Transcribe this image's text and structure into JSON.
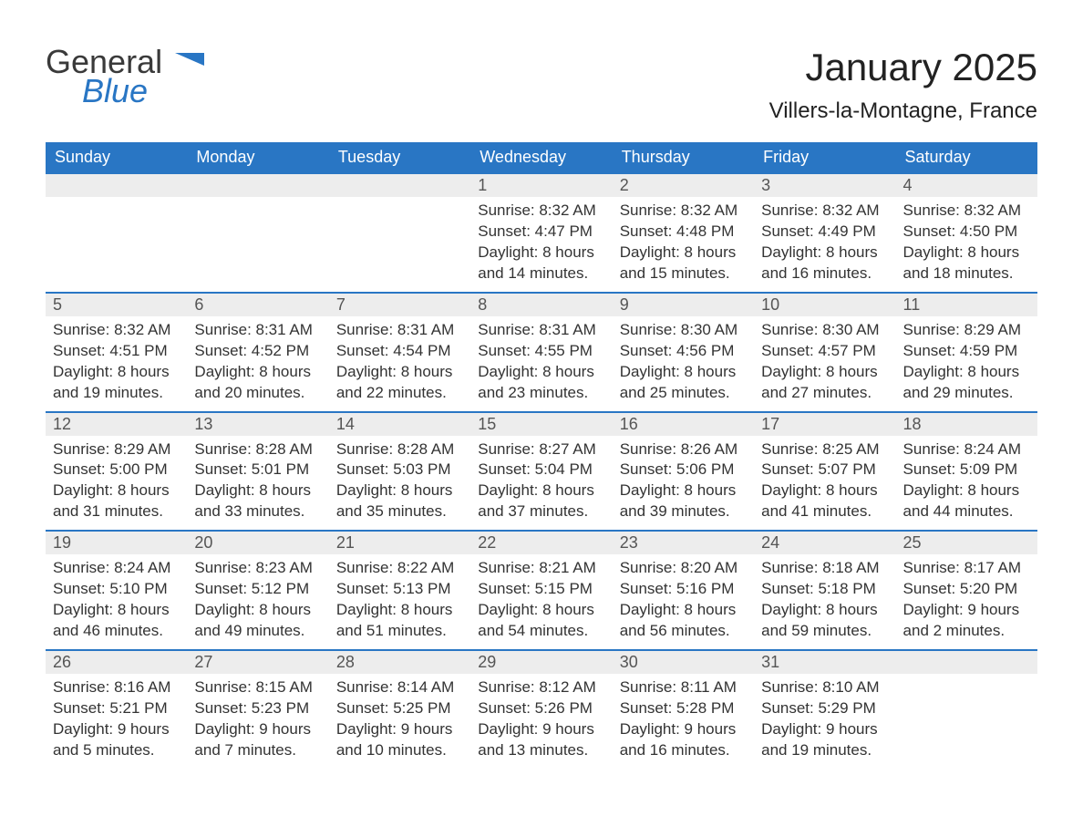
{
  "logo": {
    "general": "General",
    "blue": "Blue",
    "accent_color": "#2976c4"
  },
  "title": "January 2025",
  "location": "Villers-la-Montagne, France",
  "colors": {
    "header_bg": "#2976c4",
    "header_text": "#ffffff",
    "daynum_bg": "#ededed",
    "border": "#2976c4",
    "text": "#333333",
    "background": "#ffffff"
  },
  "day_headers": [
    "Sunday",
    "Monday",
    "Tuesday",
    "Wednesday",
    "Thursday",
    "Friday",
    "Saturday"
  ],
  "weeks": [
    [
      {
        "n": "",
        "sunrise": "",
        "sunset": "",
        "daylight": ""
      },
      {
        "n": "",
        "sunrise": "",
        "sunset": "",
        "daylight": ""
      },
      {
        "n": "",
        "sunrise": "",
        "sunset": "",
        "daylight": ""
      },
      {
        "n": "1",
        "sunrise": "Sunrise: 8:32 AM",
        "sunset": "Sunset: 4:47 PM",
        "daylight": "Daylight: 8 hours and 14 minutes."
      },
      {
        "n": "2",
        "sunrise": "Sunrise: 8:32 AM",
        "sunset": "Sunset: 4:48 PM",
        "daylight": "Daylight: 8 hours and 15 minutes."
      },
      {
        "n": "3",
        "sunrise": "Sunrise: 8:32 AM",
        "sunset": "Sunset: 4:49 PM",
        "daylight": "Daylight: 8 hours and 16 minutes."
      },
      {
        "n": "4",
        "sunrise": "Sunrise: 8:32 AM",
        "sunset": "Sunset: 4:50 PM",
        "daylight": "Daylight: 8 hours and 18 minutes."
      }
    ],
    [
      {
        "n": "5",
        "sunrise": "Sunrise: 8:32 AM",
        "sunset": "Sunset: 4:51 PM",
        "daylight": "Daylight: 8 hours and 19 minutes."
      },
      {
        "n": "6",
        "sunrise": "Sunrise: 8:31 AM",
        "sunset": "Sunset: 4:52 PM",
        "daylight": "Daylight: 8 hours and 20 minutes."
      },
      {
        "n": "7",
        "sunrise": "Sunrise: 8:31 AM",
        "sunset": "Sunset: 4:54 PM",
        "daylight": "Daylight: 8 hours and 22 minutes."
      },
      {
        "n": "8",
        "sunrise": "Sunrise: 8:31 AM",
        "sunset": "Sunset: 4:55 PM",
        "daylight": "Daylight: 8 hours and 23 minutes."
      },
      {
        "n": "9",
        "sunrise": "Sunrise: 8:30 AM",
        "sunset": "Sunset: 4:56 PM",
        "daylight": "Daylight: 8 hours and 25 minutes."
      },
      {
        "n": "10",
        "sunrise": "Sunrise: 8:30 AM",
        "sunset": "Sunset: 4:57 PM",
        "daylight": "Daylight: 8 hours and 27 minutes."
      },
      {
        "n": "11",
        "sunrise": "Sunrise: 8:29 AM",
        "sunset": "Sunset: 4:59 PM",
        "daylight": "Daylight: 8 hours and 29 minutes."
      }
    ],
    [
      {
        "n": "12",
        "sunrise": "Sunrise: 8:29 AM",
        "sunset": "Sunset: 5:00 PM",
        "daylight": "Daylight: 8 hours and 31 minutes."
      },
      {
        "n": "13",
        "sunrise": "Sunrise: 8:28 AM",
        "sunset": "Sunset: 5:01 PM",
        "daylight": "Daylight: 8 hours and 33 minutes."
      },
      {
        "n": "14",
        "sunrise": "Sunrise: 8:28 AM",
        "sunset": "Sunset: 5:03 PM",
        "daylight": "Daylight: 8 hours and 35 minutes."
      },
      {
        "n": "15",
        "sunrise": "Sunrise: 8:27 AM",
        "sunset": "Sunset: 5:04 PM",
        "daylight": "Daylight: 8 hours and 37 minutes."
      },
      {
        "n": "16",
        "sunrise": "Sunrise: 8:26 AM",
        "sunset": "Sunset: 5:06 PM",
        "daylight": "Daylight: 8 hours and 39 minutes."
      },
      {
        "n": "17",
        "sunrise": "Sunrise: 8:25 AM",
        "sunset": "Sunset: 5:07 PM",
        "daylight": "Daylight: 8 hours and 41 minutes."
      },
      {
        "n": "18",
        "sunrise": "Sunrise: 8:24 AM",
        "sunset": "Sunset: 5:09 PM",
        "daylight": "Daylight: 8 hours and 44 minutes."
      }
    ],
    [
      {
        "n": "19",
        "sunrise": "Sunrise: 8:24 AM",
        "sunset": "Sunset: 5:10 PM",
        "daylight": "Daylight: 8 hours and 46 minutes."
      },
      {
        "n": "20",
        "sunrise": "Sunrise: 8:23 AM",
        "sunset": "Sunset: 5:12 PM",
        "daylight": "Daylight: 8 hours and 49 minutes."
      },
      {
        "n": "21",
        "sunrise": "Sunrise: 8:22 AM",
        "sunset": "Sunset: 5:13 PM",
        "daylight": "Daylight: 8 hours and 51 minutes."
      },
      {
        "n": "22",
        "sunrise": "Sunrise: 8:21 AM",
        "sunset": "Sunset: 5:15 PM",
        "daylight": "Daylight: 8 hours and 54 minutes."
      },
      {
        "n": "23",
        "sunrise": "Sunrise: 8:20 AM",
        "sunset": "Sunset: 5:16 PM",
        "daylight": "Daylight: 8 hours and 56 minutes."
      },
      {
        "n": "24",
        "sunrise": "Sunrise: 8:18 AM",
        "sunset": "Sunset: 5:18 PM",
        "daylight": "Daylight: 8 hours and 59 minutes."
      },
      {
        "n": "25",
        "sunrise": "Sunrise: 8:17 AM",
        "sunset": "Sunset: 5:20 PM",
        "daylight": "Daylight: 9 hours and 2 minutes."
      }
    ],
    [
      {
        "n": "26",
        "sunrise": "Sunrise: 8:16 AM",
        "sunset": "Sunset: 5:21 PM",
        "daylight": "Daylight: 9 hours and 5 minutes."
      },
      {
        "n": "27",
        "sunrise": "Sunrise: 8:15 AM",
        "sunset": "Sunset: 5:23 PM",
        "daylight": "Daylight: 9 hours and 7 minutes."
      },
      {
        "n": "28",
        "sunrise": "Sunrise: 8:14 AM",
        "sunset": "Sunset: 5:25 PM",
        "daylight": "Daylight: 9 hours and 10 minutes."
      },
      {
        "n": "29",
        "sunrise": "Sunrise: 8:12 AM",
        "sunset": "Sunset: 5:26 PM",
        "daylight": "Daylight: 9 hours and 13 minutes."
      },
      {
        "n": "30",
        "sunrise": "Sunrise: 8:11 AM",
        "sunset": "Sunset: 5:28 PM",
        "daylight": "Daylight: 9 hours and 16 minutes."
      },
      {
        "n": "31",
        "sunrise": "Sunrise: 8:10 AM",
        "sunset": "Sunset: 5:29 PM",
        "daylight": "Daylight: 9 hours and 19 minutes."
      },
      {
        "n": "",
        "sunrise": "",
        "sunset": "",
        "daylight": ""
      }
    ]
  ]
}
